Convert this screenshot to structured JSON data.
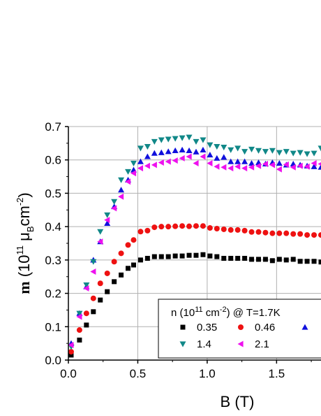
{
  "chart_data": {
    "type": "scatter",
    "xlabel_main": "B (T)",
    "ylabel": {
      "main": "m",
      "open": " (10",
      "exp1": "11",
      "mu": " μ",
      "sub": "B",
      "unit": "cm",
      "exp2": "-2",
      "close": ")"
    },
    "xlim": [
      0,
      1.82
    ],
    "ylim": [
      0,
      0.7
    ],
    "xticks": [
      "0.0",
      "0.5",
      "1.0",
      "1.5"
    ],
    "yticks": [
      "0.0",
      "0.1",
      "0.2",
      "0.3",
      "0.4",
      "0.5",
      "0.6",
      "0.7"
    ],
    "grid": true,
    "legend": {
      "position": "bottom-right",
      "title": {
        "main": "n (10",
        "exp": "11",
        "unit": " cm",
        "exp2": "-2",
        "rest": ") @ T=1.7K"
      }
    },
    "series": [
      {
        "name": "0.35",
        "marker": "square",
        "color": "#000000",
        "points": [
          [
            0.02,
            0.015
          ],
          [
            0.08,
            0.06
          ],
          [
            0.13,
            0.105
          ],
          [
            0.18,
            0.145
          ],
          [
            0.23,
            0.18
          ],
          [
            0.28,
            0.205
          ],
          [
            0.33,
            0.235
          ],
          [
            0.38,
            0.255
          ],
          [
            0.43,
            0.275
          ],
          [
            0.47,
            0.285
          ],
          [
            0.52,
            0.3
          ],
          [
            0.57,
            0.305
          ],
          [
            0.62,
            0.31
          ],
          [
            0.67,
            0.31
          ],
          [
            0.72,
            0.31
          ],
          [
            0.77,
            0.312
          ],
          [
            0.82,
            0.312
          ],
          [
            0.87,
            0.314
          ],
          [
            0.92,
            0.314
          ],
          [
            0.97,
            0.316
          ],
          [
            1.02,
            0.312
          ],
          [
            1.07,
            0.31
          ],
          [
            1.12,
            0.305
          ],
          [
            1.17,
            0.305
          ],
          [
            1.22,
            0.305
          ],
          [
            1.27,
            0.305
          ],
          [
            1.32,
            0.302
          ],
          [
            1.37,
            0.302
          ],
          [
            1.42,
            0.302
          ],
          [
            1.47,
            0.298
          ],
          [
            1.52,
            0.302
          ],
          [
            1.57,
            0.3
          ],
          [
            1.62,
            0.302
          ],
          [
            1.67,
            0.296
          ],
          [
            1.72,
            0.296
          ],
          [
            1.77,
            0.296
          ],
          [
            1.82,
            0.294
          ]
        ]
      },
      {
        "name": "0.46",
        "marker": "circle",
        "color": "#ee1111",
        "points": [
          [
            0.02,
            0.025
          ],
          [
            0.08,
            0.09
          ],
          [
            0.13,
            0.14
          ],
          [
            0.18,
            0.185
          ],
          [
            0.23,
            0.23
          ],
          [
            0.28,
            0.26
          ],
          [
            0.33,
            0.295
          ],
          [
            0.38,
            0.32
          ],
          [
            0.43,
            0.345
          ],
          [
            0.47,
            0.36
          ],
          [
            0.52,
            0.385
          ],
          [
            0.57,
            0.388
          ],
          [
            0.62,
            0.398
          ],
          [
            0.67,
            0.4
          ],
          [
            0.72,
            0.4
          ],
          [
            0.77,
            0.401
          ],
          [
            0.82,
            0.402
          ],
          [
            0.87,
            0.401
          ],
          [
            0.92,
            0.402
          ],
          [
            0.97,
            0.402
          ],
          [
            1.02,
            0.396
          ],
          [
            1.07,
            0.394
          ],
          [
            1.12,
            0.392
          ],
          [
            1.17,
            0.39
          ],
          [
            1.22,
            0.39
          ],
          [
            1.27,
            0.388
          ],
          [
            1.32,
            0.384
          ],
          [
            1.37,
            0.384
          ],
          [
            1.42,
            0.382
          ],
          [
            1.47,
            0.38
          ],
          [
            1.52,
            0.38
          ],
          [
            1.57,
            0.38
          ],
          [
            1.62,
            0.378
          ],
          [
            1.67,
            0.378
          ],
          [
            1.72,
            0.375
          ],
          [
            1.77,
            0.375
          ],
          [
            1.82,
            0.375
          ]
        ]
      },
      {
        "name": "",
        "marker": "triangle-up",
        "color": "#1010dd",
        "points": [
          [
            0.02,
            0.05
          ],
          [
            0.08,
            0.14
          ],
          [
            0.13,
            0.22
          ],
          [
            0.18,
            0.3
          ],
          [
            0.23,
            0.355
          ],
          [
            0.28,
            0.41
          ],
          [
            0.33,
            0.46
          ],
          [
            0.38,
            0.51
          ],
          [
            0.43,
            0.54
          ],
          [
            0.47,
            0.57
          ],
          [
            0.52,
            0.595
          ],
          [
            0.57,
            0.61
          ],
          [
            0.62,
            0.62
          ],
          [
            0.67,
            0.622
          ],
          [
            0.72,
            0.625
          ],
          [
            0.77,
            0.628
          ],
          [
            0.82,
            0.63
          ],
          [
            0.87,
            0.628
          ],
          [
            0.92,
            0.624
          ],
          [
            0.97,
            0.63
          ],
          [
            1.02,
            0.615
          ],
          [
            1.07,
            0.605
          ],
          [
            1.12,
            0.608
          ],
          [
            1.17,
            0.595
          ],
          [
            1.22,
            0.595
          ],
          [
            1.27,
            0.595
          ],
          [
            1.32,
            0.59
          ],
          [
            1.37,
            0.592
          ],
          [
            1.42,
            0.588
          ],
          [
            1.47,
            0.592
          ],
          [
            1.52,
            0.59
          ],
          [
            1.57,
            0.585
          ],
          [
            1.62,
            0.588
          ],
          [
            1.67,
            0.585
          ],
          [
            1.72,
            0.582
          ],
          [
            1.77,
            0.58
          ],
          [
            1.82,
            0.578
          ]
        ]
      },
      {
        "name": "1.4",
        "marker": "triangle-down",
        "color": "#118888",
        "points": [
          [
            0.02,
            0.04
          ],
          [
            0.08,
            0.14
          ],
          [
            0.13,
            0.225
          ],
          [
            0.18,
            0.295
          ],
          [
            0.23,
            0.385
          ],
          [
            0.28,
            0.435
          ],
          [
            0.33,
            0.475
          ],
          [
            0.38,
            0.54
          ],
          [
            0.43,
            0.565
          ],
          [
            0.47,
            0.59
          ],
          [
            0.52,
            0.635
          ],
          [
            0.57,
            0.64
          ],
          [
            0.62,
            0.655
          ],
          [
            0.67,
            0.66
          ],
          [
            0.72,
            0.662
          ],
          [
            0.77,
            0.664
          ],
          [
            0.82,
            0.666
          ],
          [
            0.87,
            0.668
          ],
          [
            0.92,
            0.655
          ],
          [
            0.97,
            0.66
          ],
          [
            1.02,
            0.645
          ],
          [
            1.07,
            0.64
          ],
          [
            1.12,
            0.638
          ],
          [
            1.17,
            0.63
          ],
          [
            1.22,
            0.635
          ],
          [
            1.27,
            0.625
          ],
          [
            1.32,
            0.632
          ],
          [
            1.37,
            0.628
          ],
          [
            1.42,
            0.625
          ],
          [
            1.47,
            0.628
          ],
          [
            1.52,
            0.622
          ],
          [
            1.57,
            0.625
          ],
          [
            1.62,
            0.62
          ],
          [
            1.67,
            0.622
          ],
          [
            1.72,
            0.618
          ],
          [
            1.77,
            0.62
          ],
          [
            1.82,
            0.635
          ]
        ]
      },
      {
        "name": "2.1",
        "marker": "triangle-left",
        "color": "#ee11ee",
        "points": [
          [
            0.02,
            0.045
          ],
          [
            0.08,
            0.13
          ],
          [
            0.13,
            0.215
          ],
          [
            0.18,
            0.265
          ],
          [
            0.23,
            0.355
          ],
          [
            0.28,
            0.42
          ],
          [
            0.33,
            0.455
          ],
          [
            0.38,
            0.49
          ],
          [
            0.43,
            0.535
          ],
          [
            0.47,
            0.56
          ],
          [
            0.52,
            0.575
          ],
          [
            0.57,
            0.582
          ],
          [
            0.62,
            0.585
          ],
          [
            0.67,
            0.592
          ],
          [
            0.72,
            0.595
          ],
          [
            0.77,
            0.598
          ],
          [
            0.82,
            0.605
          ],
          [
            0.87,
            0.61
          ],
          [
            0.92,
            0.59
          ],
          [
            0.97,
            0.61
          ],
          [
            1.02,
            0.59
          ],
          [
            1.07,
            0.58
          ],
          [
            1.12,
            0.578
          ],
          [
            1.17,
            0.575
          ],
          [
            1.22,
            0.58
          ],
          [
            1.27,
            0.575
          ],
          [
            1.32,
            0.578
          ],
          [
            1.37,
            0.582
          ],
          [
            1.42,
            0.588
          ],
          [
            1.47,
            0.585
          ],
          [
            1.52,
            0.572
          ],
          [
            1.57,
            0.586
          ],
          [
            1.62,
            0.578
          ],
          [
            1.67,
            0.582
          ],
          [
            1.72,
            0.58
          ],
          [
            1.77,
            0.59
          ],
          [
            1.82,
            0.588
          ]
        ]
      }
    ]
  }
}
